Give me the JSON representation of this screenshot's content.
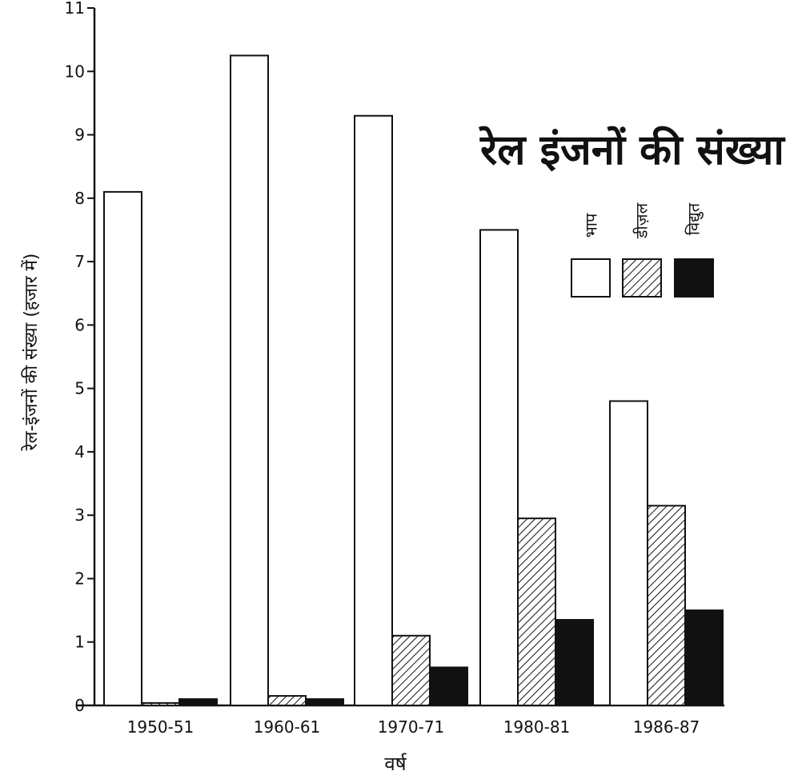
{
  "chart_data": {
    "type": "bar",
    "title": "रेल इंजनों की संख्या",
    "xlabel": "वर्ष",
    "ylabel": "रेल-इंजनों की संख्या (हजार में)",
    "categories": [
      "1950-51",
      "1960-61",
      "1970-71",
      "1980-81",
      "1986-87"
    ],
    "series": [
      {
        "name": "भाप",
        "values": [
          8.1,
          10.25,
          9.3,
          7.5,
          4.8
        ],
        "pattern": "empty"
      },
      {
        "name": "डीज़ल",
        "values": [
          0.02,
          0.15,
          1.1,
          2.95,
          3.15
        ],
        "pattern": "hatched"
      },
      {
        "name": "विद्युत",
        "values": [
          0.1,
          0.1,
          0.6,
          1.35,
          1.5
        ],
        "pattern": "solid"
      }
    ],
    "ylim": [
      0,
      11
    ],
    "yticks": [
      "0",
      "1",
      "2",
      "3",
      "4",
      "5",
      "6",
      "7",
      "8",
      "9",
      "10",
      "11"
    ],
    "grid": false,
    "legend": "right",
    "colors": {
      "ink": "#111111",
      "paper": "#ffffff"
    }
  }
}
